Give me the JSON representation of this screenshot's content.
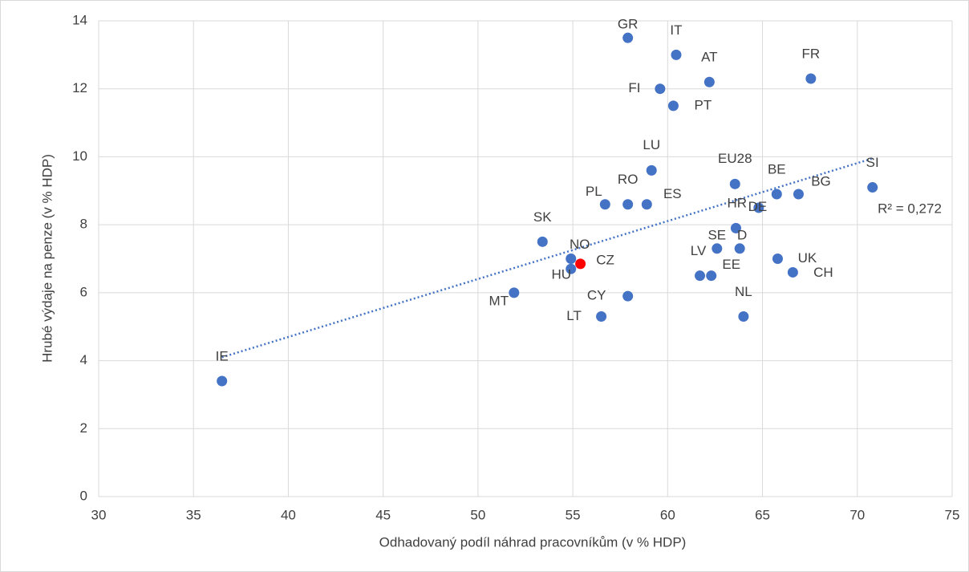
{
  "chart_data": {
    "type": "scatter",
    "x_label": "Odhadovaný podíl náhrad pracovníkům (v % HDP)",
    "y_label": "Hrubé výdaje na penze (v % HDP)",
    "labels": [
      "GR",
      "IT",
      "AT",
      "FR",
      "FI",
      "PT",
      "LU",
      "RO",
      "PL",
      "ES",
      "EU28",
      "BE",
      "BG",
      "HR",
      "DE",
      "SI",
      "SK",
      "NO",
      "HU",
      "CZ",
      "SE",
      "D",
      "LV",
      "EE",
      "UK",
      "CH",
      "NL",
      "CY",
      "LT",
      "MT",
      "IE"
    ],
    "x": [
      57.9,
      60.45,
      62.2,
      67.55,
      59.6,
      60.3,
      59.15,
      57.9,
      56.7,
      58.9,
      63.55,
      65.75,
      66.9,
      64.8,
      63.6,
      70.8,
      53.4,
      54.9,
      54.9,
      55.4,
      62.6,
      63.8,
      61.7,
      62.3,
      65.8,
      66.6,
      64.0,
      57.9,
      56.5,
      51.9,
      36.5
    ],
    "y": [
      13.5,
      13.0,
      12.2,
      12.3,
      12.0,
      11.5,
      9.6,
      8.6,
      8.6,
      8.6,
      9.2,
      8.9,
      8.9,
      8.5,
      7.9,
      9.1,
      7.5,
      7.0,
      6.7,
      6.85,
      7.3,
      7.3,
      6.5,
      6.5,
      7.0,
      6.6,
      5.3,
      5.9,
      5.3,
      6.0,
      3.4
    ],
    "colors": [
      "#4472c4",
      "#4472c4",
      "#4472c4",
      "#4472c4",
      "#4472c4",
      "#4472c4",
      "#4472c4",
      "#4472c4",
      "#4472c4",
      "#4472c4",
      "#4472c4",
      "#4472c4",
      "#4472c4",
      "#4472c4",
      "#4472c4",
      "#4472c4",
      "#4472c4",
      "#4472c4",
      "#4472c4",
      "#ff0000",
      "#4472c4",
      "#4472c4",
      "#4472c4",
      "#4472c4",
      "#4472c4",
      "#4472c4",
      "#4472c4",
      "#4472c4",
      "#4472c4",
      "#4472c4",
      "#4472c4"
    ],
    "trendline": {
      "x": [
        36.5,
        70.8
      ],
      "y": [
        4.1,
        9.95
      ],
      "label": "R² = 0,272",
      "color": "#4472c4"
    },
    "xlim": [
      30,
      75
    ],
    "xticks": [
      30,
      35,
      40,
      45,
      50,
      55,
      60,
      65,
      70,
      75
    ],
    "ylim": [
      0,
      14
    ],
    "yticks": [
      0,
      2,
      4,
      6,
      8,
      10,
      12,
      14
    ],
    "grid": true
  }
}
